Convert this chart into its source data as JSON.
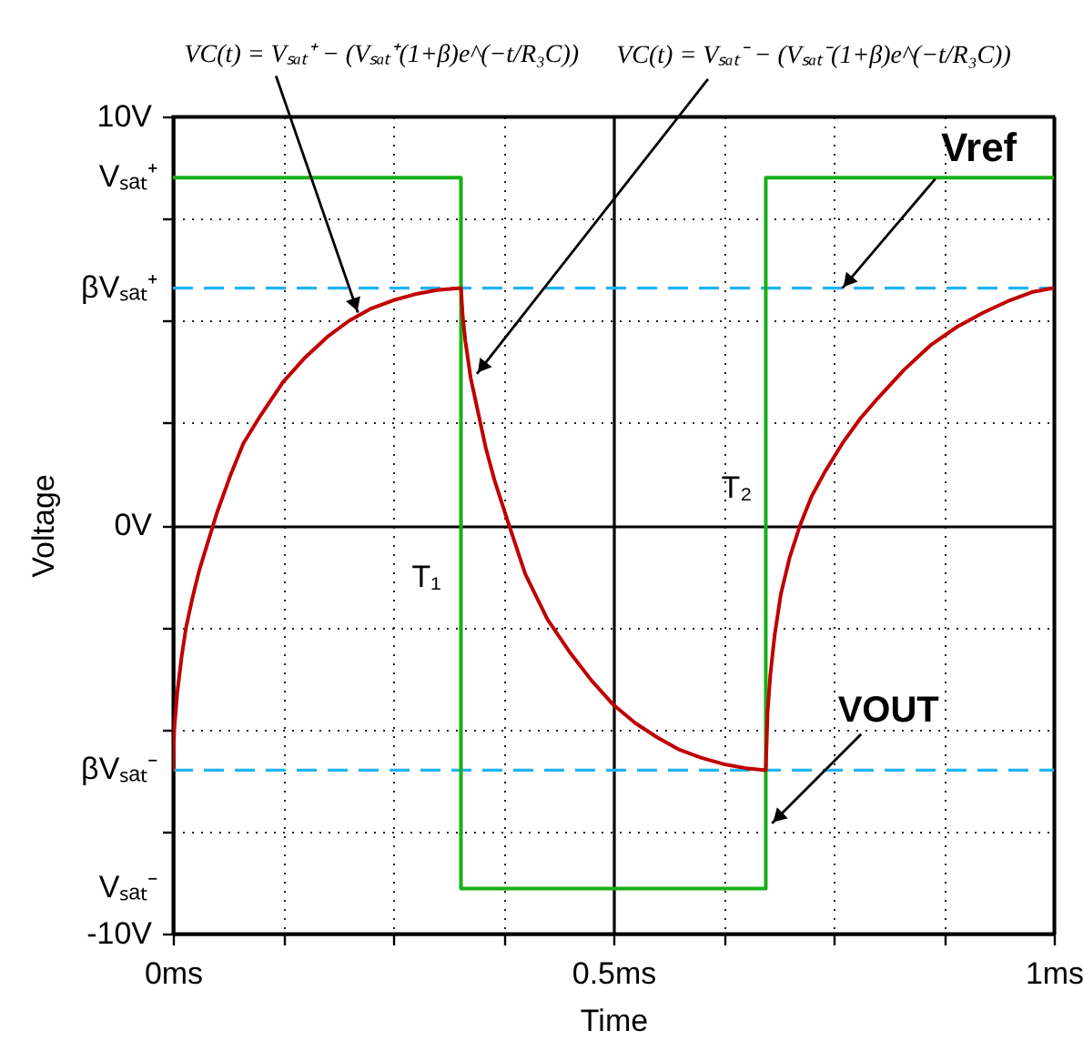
{
  "chart_data": {
    "type": "line",
    "xlabel": "Time",
    "ylabel": "Voltage",
    "xlim": [
      0,
      1
    ],
    "ylim": [
      -10,
      10
    ],
    "xticks": [
      {
        "value": 0,
        "label": "0ms"
      },
      {
        "value": 0.125,
        "label": null
      },
      {
        "value": 0.25,
        "label": null
      },
      {
        "value": 0.375,
        "label": null
      },
      {
        "value": 0.5,
        "label": "0.5ms"
      },
      {
        "value": 0.625,
        "label": null
      },
      {
        "value": 0.75,
        "label": null
      },
      {
        "value": 0.875,
        "label": null
      },
      {
        "value": 1,
        "label": "1ms"
      }
    ],
    "yticks": [
      {
        "value": -10,
        "label": "-10V"
      },
      {
        "value": -7.5,
        "label": null
      },
      {
        "value": -5,
        "label": null
      },
      {
        "value": -2.5,
        "label": null
      },
      {
        "value": 0,
        "label": "0V"
      },
      {
        "value": 2.5,
        "label": null
      },
      {
        "value": 5,
        "label": null
      },
      {
        "value": 7.5,
        "label": null
      },
      {
        "value": 10,
        "label": "10V"
      }
    ],
    "grid": true,
    "ref_lines": [
      {
        "axis": "y",
        "value": 5.8,
        "label": "βVₛₐₜ⁺",
        "color": "#1fb4f0",
        "line_style": "dashed"
      },
      {
        "axis": "y",
        "value": -6,
        "label": "βVₛₐₜ⁻",
        "color": "#1fb4f0",
        "line_style": "dashed"
      }
    ],
    "series": [
      {
        "color": "#17b017",
        "x": [
          0,
          0.327,
          0.327,
          0.673,
          0.673,
          1
        ],
        "values": [
          8.5,
          8.5,
          -8.9,
          -8.9,
          8.5,
          8.5
        ]
      },
      {
        "color": "#c00000",
        "x": [
          0,
          0.0015,
          0.005,
          0.01,
          0.015,
          0.022,
          0.03,
          0.04,
          0.05,
          0.065,
          0.08,
          0.1,
          0.125,
          0.15,
          0.175,
          0.2,
          0.225,
          0.25,
          0.275,
          0.3,
          0.327,
          0.329,
          0.332,
          0.338,
          0.345,
          0.355,
          0.365,
          0.38,
          0.4,
          0.425,
          0.45,
          0.475,
          0.5,
          0.525,
          0.55,
          0.575,
          0.6,
          0.625,
          0.65,
          0.673,
          0.675,
          0.678,
          0.683,
          0.69,
          0.7,
          0.712,
          0.725,
          0.74,
          0.76,
          0.78,
          0.8,
          0.83,
          0.86,
          0.89,
          0.92,
          0.95,
          0.975,
          1
        ],
        "values": [
          -6,
          -5,
          -4.1,
          -3.2,
          -2.5,
          -1.8,
          -1.1,
          -0.4,
          0.3,
          1.2,
          2,
          2.7,
          3.5,
          4.1,
          4.6,
          5,
          5.3,
          5.5,
          5.65,
          5.75,
          5.8,
          5.1,
          4.5,
          3.6,
          2.9,
          1.9,
          1.1,
          0.1,
          -1.2,
          -2.3,
          -3.1,
          -3.8,
          -4.4,
          -4.85,
          -5.2,
          -5.5,
          -5.7,
          -5.85,
          -5.95,
          -6,
          -4.6,
          -3.7,
          -2.7,
          -1.7,
          -0.8,
          0,
          0.7,
          1.3,
          2,
          2.6,
          3.1,
          3.8,
          4.4,
          4.85,
          5.2,
          5.5,
          5.7,
          5.8
        ]
      }
    ],
    "annotations": [
      {
        "text": "VC(t) = Vₛₐₜ⁺ − (Vₛₐₜ⁺(1+β)e^(−t/R₃C))",
        "x": 0.21,
        "y": 5.2
      },
      {
        "text": "VC(t) = Vₛₐₜ⁻ − (Vₛₐₜ⁻(1+β)e^(−t/R₃C))",
        "x": 0.345,
        "y": 3.7
      },
      {
        "text": "T₁",
        "x": 0.327,
        "y": -1.3
      },
      {
        "text": "T₂",
        "x": 0.673,
        "y": 0.9
      },
      {
        "text": "Vref",
        "x": 0.76,
        "y": 5.8
      },
      {
        "text": "VOUT",
        "x": 0.68,
        "y": -7.3
      },
      {
        "text": "Vₛₐₜ⁺",
        "x": 0,
        "y": 8.5
      },
      "Vₛₐₜ⁻"
    ]
  }
}
